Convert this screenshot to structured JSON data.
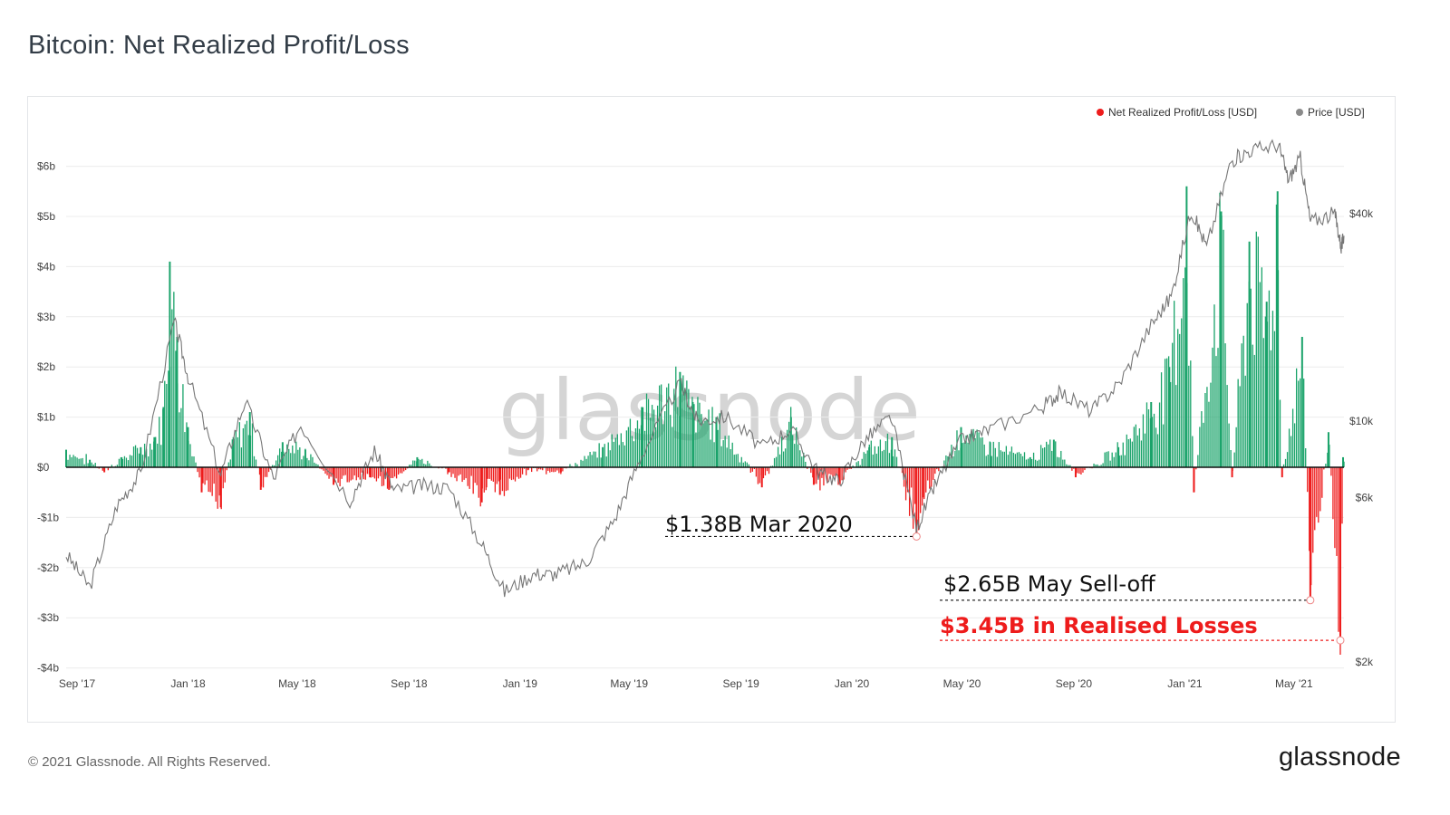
{
  "header": {
    "title": "Bitcoin: Net Realized Profit/Loss"
  },
  "footer": {
    "copyright": "© 2021 Glassnode. All Rights Reserved.",
    "logo_text": "glassnode"
  },
  "colors": {
    "profit": "#1aa36a",
    "loss": "#ee1c1c",
    "price": "#8a8a8a",
    "zero_line": "#111111"
  },
  "chart_data": {
    "type": "bar",
    "title": "Bitcoin: Net Realized Profit/Loss",
    "watermark": "glassnode",
    "legend": {
      "placement": "top-right",
      "entries": [
        {
          "label": "Net Realized Profit/Loss [USD]",
          "color": "#ee1c1c"
        },
        {
          "label": "Price [USD]",
          "color": "#8a8a8a"
        }
      ]
    },
    "x_ticks": [
      {
        "label": "Sep '17",
        "date": "2017-09-01"
      },
      {
        "label": "Jan '18",
        "date": "2018-01-01"
      },
      {
        "label": "May '18",
        "date": "2018-05-01"
      },
      {
        "label": "Sep '18",
        "date": "2018-09-01"
      },
      {
        "label": "Jan '19",
        "date": "2019-01-01"
      },
      {
        "label": "May '19",
        "date": "2019-05-01"
      },
      {
        "label": "Sep '19",
        "date": "2019-09-01"
      },
      {
        "label": "Jan '20",
        "date": "2020-01-01"
      },
      {
        "label": "May '20",
        "date": "2020-05-01"
      },
      {
        "label": "Sep '20",
        "date": "2020-09-01"
      },
      {
        "label": "Jan '21",
        "date": "2021-01-01"
      },
      {
        "label": "May '21",
        "date": "2021-05-01"
      }
    ],
    "y_left": {
      "ylim": [
        -4,
        6.5
      ],
      "ticks": [
        {
          "label": "$6b",
          "value": 6
        },
        {
          "label": "$5b",
          "value": 5
        },
        {
          "label": "$4b",
          "value": 4
        },
        {
          "label": "$3b",
          "value": 3
        },
        {
          "label": "$2b",
          "value": 2
        },
        {
          "label": "$1b",
          "value": 1
        },
        {
          "label": "$0",
          "value": 0
        },
        {
          "label": "-$1b",
          "value": -1
        },
        {
          "label": "-$2b",
          "value": -2
        },
        {
          "label": "-$3b",
          "value": -3
        },
        {
          "label": "-$4b",
          "value": -4
        }
      ]
    },
    "y_right": {
      "scale": "log",
      "ticks": [
        {
          "label": "$40k",
          "value": 40000
        },
        {
          "label": "$10k",
          "value": 10000
        },
        {
          "label": "$6k",
          "value": 6000
        },
        {
          "label": "$2k",
          "value": 2000
        }
      ]
    },
    "grid": true,
    "net_pl_series": {
      "name": "Net Realized Profit/Loss [USD]",
      "unit": "billion USD",
      "points": [
        [
          "2017-08-20",
          0.35
        ],
        [
          "2017-09-15",
          0.15
        ],
        [
          "2017-10-01",
          -0.1
        ],
        [
          "2017-10-20",
          0.2
        ],
        [
          "2017-11-10",
          0.4
        ],
        [
          "2017-11-25",
          0.6
        ],
        [
          "2017-12-05",
          1.2
        ],
        [
          "2017-12-12",
          4.1
        ],
        [
          "2017-12-20",
          2.6
        ],
        [
          "2018-01-01",
          0.8
        ],
        [
          "2018-01-16",
          -0.5
        ],
        [
          "2018-02-06",
          -0.8
        ],
        [
          "2018-02-20",
          0.6
        ],
        [
          "2018-03-10",
          1.1
        ],
        [
          "2018-03-22",
          -0.45
        ],
        [
          "2018-04-15",
          0.5
        ],
        [
          "2018-05-10",
          0.35
        ],
        [
          "2018-06-10",
          -0.35
        ],
        [
          "2018-07-20",
          -0.2
        ],
        [
          "2018-08-10",
          -0.45
        ],
        [
          "2018-09-10",
          0.2
        ],
        [
          "2018-10-15",
          -0.1
        ],
        [
          "2018-11-20",
          -0.7
        ],
        [
          "2018-11-25",
          -0.4
        ],
        [
          "2018-12-10",
          -0.55
        ],
        [
          "2019-01-10",
          -0.05
        ],
        [
          "2019-02-15",
          -0.1
        ],
        [
          "2019-04-02",
          0.4
        ],
        [
          "2019-05-15",
          1.2
        ],
        [
          "2019-06-26",
          1.9
        ],
        [
          "2019-07-10",
          1.3
        ],
        [
          "2019-08-05",
          1.0
        ],
        [
          "2019-09-24",
          -0.4
        ],
        [
          "2019-10-26",
          1.0
        ],
        [
          "2019-11-20",
          -0.35
        ],
        [
          "2019-12-18",
          -0.3
        ],
        [
          "2020-01-20",
          0.4
        ],
        [
          "2020-02-14",
          0.6
        ],
        [
          "2020-03-12",
          -1.38
        ],
        [
          "2020-03-20",
          -0.6
        ],
        [
          "2020-04-30",
          0.8
        ],
        [
          "2020-06-01",
          0.5
        ],
        [
          "2020-07-15",
          0.2
        ],
        [
          "2020-08-10",
          0.55
        ],
        [
          "2020-09-03",
          -0.2
        ],
        [
          "2020-10-20",
          0.4
        ],
        [
          "2020-11-25",
          1.3
        ],
        [
          "2020-12-15",
          2.0
        ],
        [
          "2021-01-03",
          5.6
        ],
        [
          "2021-01-11",
          -0.5
        ],
        [
          "2021-02-10",
          5.1
        ],
        [
          "2021-02-22",
          -0.2
        ],
        [
          "2021-03-13",
          4.5
        ],
        [
          "2021-04-01",
          3.3
        ],
        [
          "2021-04-13",
          5.5
        ],
        [
          "2021-04-18",
          -0.2
        ],
        [
          "2021-05-10",
          2.6
        ],
        [
          "2021-05-19",
          -2.65
        ],
        [
          "2021-06-08",
          0.7
        ],
        [
          "2021-06-21",
          -3.45
        ],
        [
          "2021-06-24",
          0.2
        ]
      ]
    },
    "price_series": {
      "name": "Price [USD]",
      "unit": "USD",
      "points": [
        [
          "2017-08-20",
          4100
        ],
        [
          "2017-09-15",
          3300
        ],
        [
          "2017-10-15",
          5700
        ],
        [
          "2017-11-10",
          7100
        ],
        [
          "2017-12-17",
          19500
        ],
        [
          "2018-01-01",
          13500
        ],
        [
          "2018-02-06",
          7000
        ],
        [
          "2018-03-05",
          11500
        ],
        [
          "2018-04-05",
          6800
        ],
        [
          "2018-05-05",
          9800
        ],
        [
          "2018-06-28",
          5900
        ],
        [
          "2018-07-25",
          8200
        ],
        [
          "2018-08-15",
          6300
        ],
        [
          "2018-09-15",
          6500
        ],
        [
          "2018-10-15",
          6400
        ],
        [
          "2018-11-20",
          4400
        ],
        [
          "2018-12-15",
          3200
        ],
        [
          "2019-01-15",
          3600
        ],
        [
          "2019-02-10",
          3600
        ],
        [
          "2019-03-15",
          3900
        ],
        [
          "2019-04-15",
          5200
        ],
        [
          "2019-05-15",
          8000
        ],
        [
          "2019-06-26",
          12900
        ],
        [
          "2019-07-15",
          10000
        ],
        [
          "2019-08-15",
          10300
        ],
        [
          "2019-09-25",
          8400
        ],
        [
          "2019-10-26",
          9500
        ],
        [
          "2019-11-25",
          7100
        ],
        [
          "2019-12-18",
          6700
        ],
        [
          "2020-01-15",
          8800
        ],
        [
          "2020-02-13",
          10300
        ],
        [
          "2020-03-12",
          4900
        ],
        [
          "2020-04-01",
          6500
        ],
        [
          "2020-04-30",
          8800
        ],
        [
          "2020-06-01",
          9500
        ],
        [
          "2020-07-28",
          11000
        ],
        [
          "2020-08-17",
          12100
        ],
        [
          "2020-09-20",
          10700
        ],
        [
          "2020-10-21",
          12900
        ],
        [
          "2020-11-25",
          19000
        ],
        [
          "2020-12-17",
          23000
        ],
        [
          "2021-01-08",
          41000
        ],
        [
          "2021-01-25",
          32000
        ],
        [
          "2021-02-21",
          57000
        ],
        [
          "2021-03-13",
          61000
        ],
        [
          "2021-04-14",
          63500
        ],
        [
          "2021-04-25",
          50000
        ],
        [
          "2021-05-08",
          58000
        ],
        [
          "2021-05-19",
          38000
        ],
        [
          "2021-06-15",
          40000
        ],
        [
          "2021-06-22",
          32000
        ],
        [
          "2021-06-25",
          34500
        ]
      ]
    },
    "annotations": [
      {
        "text": "$1.38B Mar 2020",
        "date": "2020-03-12",
        "value": -1.38,
        "color": "#111111",
        "bold": false
      },
      {
        "text": "$2.65B May Sell-off",
        "date": "2021-05-19",
        "value": -2.65,
        "color": "#111111",
        "bold": false
      },
      {
        "text": "$3.45B in Realised Losses",
        "date": "2021-06-21",
        "value": -3.45,
        "color": "#ee1c1c",
        "bold": true
      }
    ]
  }
}
